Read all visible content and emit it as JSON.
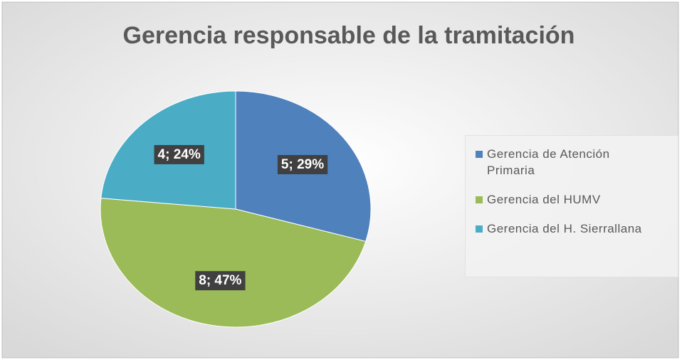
{
  "chart_data": {
    "type": "pie",
    "title": "Gerencia responsable de la tramitación",
    "categories": [
      "Gerencia de Atención Primaria",
      "Gerencia del HUMV",
      "Gerencia del H. Sierrallana"
    ],
    "values": [
      5,
      8,
      4
    ],
    "value_labels": [
      "5; 29%",
      "8; 47%",
      "4; 24%"
    ],
    "colors": [
      "#4f81bd",
      "#9bbb59",
      "#4bacc6"
    ],
    "legend": "right"
  }
}
